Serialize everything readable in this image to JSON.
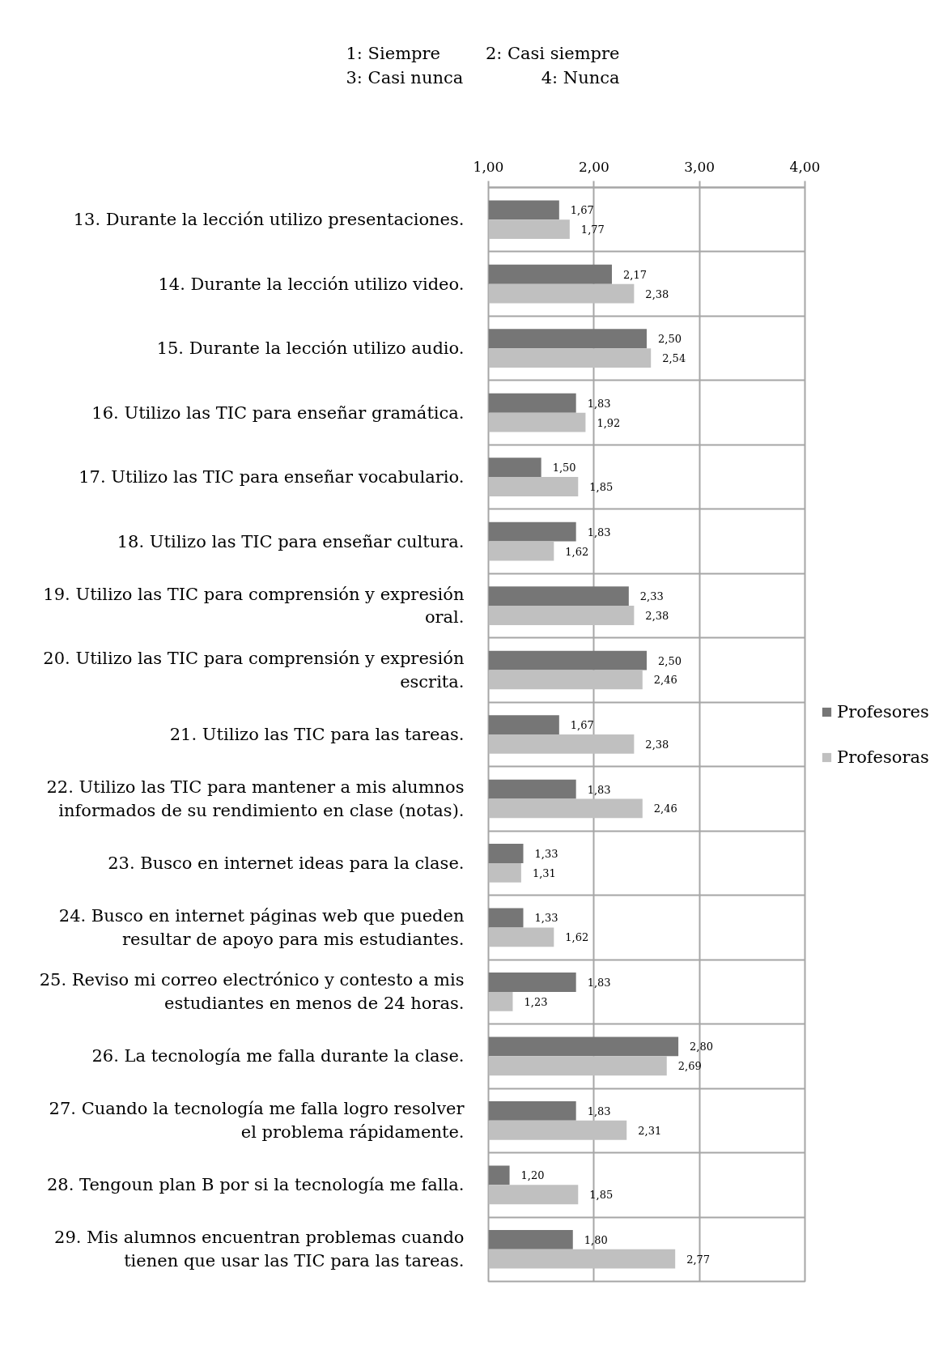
{
  "chart_data": {
    "type": "bar",
    "orientation": "horizontal",
    "annotations": [
      "1: Siempre",
      "2: Casi siempre",
      "3: Casi nunca",
      "4: Nunca"
    ],
    "categories": [
      "13. Durante la lección utilizo presentaciones.",
      "14. Durante la lección utilizo video.",
      "15. Durante la lección utilizo audio.",
      "16. Utilizo las TIC para enseñar gramática.",
      "17. Utilizo las TIC para enseñar vocabulario.",
      "18. Utilizo las TIC para enseñar cultura.",
      "19. Utilizo las TIC para comprensión y expresión oral.",
      "20. Utilizo las TIC para comprensión y expresión escrita.",
      "21. Utilizo las TIC para las tareas.",
      "22. Utilizo las TIC para mantener a mis alumnos informados de su rendimiento en clase (notas).",
      "23. Busco en internet ideas para la clase.",
      "24. Busco en internet páginas web que pueden resultar de apoyo para mis estudiantes.",
      "25. Reviso mi correo electrónico y contesto a mis estudiantes en menos de 24 horas.",
      "26. La tecnología me falla durante la clase.",
      "27. Cuando la tecnología me falla logro resolver el problema rápidamente.",
      "28. Tengoun plan B por si la tecnología me falla.",
      "29. Mis alumnos encuentran problemas cuando tienen que usar las TIC para las tareas."
    ],
    "series": [
      {
        "name": "Profesores",
        "color": "#767676",
        "values": [
          1.67,
          2.17,
          2.5,
          1.83,
          1.5,
          1.83,
          2.33,
          2.5,
          1.67,
          1.83,
          1.33,
          1.33,
          1.83,
          2.8,
          1.83,
          1.2,
          1.8
        ],
        "value_labels": [
          "1,67",
          "2,17",
          "2,50",
          "1,83",
          "1,50",
          "1,83",
          "2,33",
          "2,50",
          "1,67",
          "1,83",
          "1,33",
          "1,33",
          "1,83",
          "2,80",
          "1,83",
          "1,20",
          "1,80"
        ]
      },
      {
        "name": "Profesoras",
        "color": "#c0c0c0",
        "values": [
          1.77,
          2.38,
          2.54,
          1.92,
          1.85,
          1.62,
          2.38,
          2.46,
          2.38,
          2.46,
          1.31,
          1.62,
          1.23,
          2.69,
          2.31,
          1.85,
          2.77
        ],
        "value_labels": [
          "1,77",
          "2,38",
          "2,54",
          "1,92",
          "1,85",
          "1,62",
          "2,38",
          "2,46",
          "2,38",
          "2,46",
          "1,31",
          "1,62",
          "1,23",
          "2,69",
          "2,31",
          "1,85",
          "2,77"
        ]
      }
    ],
    "xlim": [
      1,
      4
    ],
    "xticks": [
      {
        "value": 1,
        "label": "1,00"
      },
      {
        "value": 2,
        "label": "2,00"
      },
      {
        "value": 3,
        "label": "3,00"
      },
      {
        "value": 4,
        "label": "4,00"
      }
    ],
    "grid": true,
    "legend": "right"
  }
}
